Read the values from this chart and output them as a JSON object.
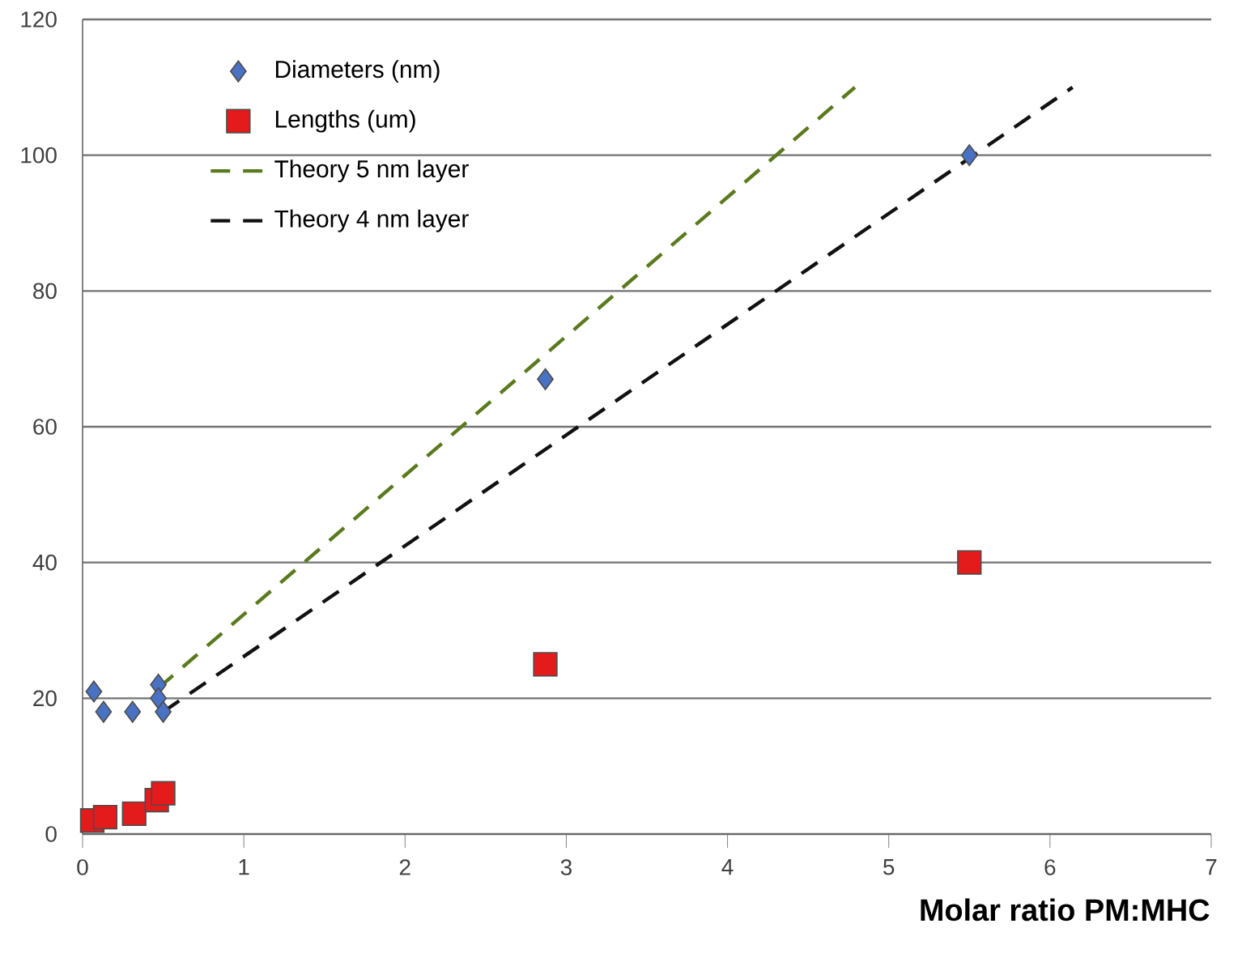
{
  "chart_data": {
    "type": "scatter",
    "xlabel": "Molar ratio PM:MHC",
    "xlim": [
      0,
      7
    ],
    "ylim": [
      0,
      120
    ],
    "xticks": [
      0,
      1,
      2,
      3,
      4,
      5,
      6,
      7
    ],
    "yticks": [
      0,
      20,
      40,
      60,
      80,
      100,
      120
    ],
    "grid": "y",
    "legend": "top left",
    "series": [
      {
        "name": "Diameters (nm)",
        "marker": "diamond",
        "color": "#4a72c4",
        "x": [
          0.07,
          0.13,
          0.31,
          0.47,
          0.47,
          0.5,
          2.87,
          5.5
        ],
        "values": [
          21,
          18,
          18,
          22,
          20,
          18,
          67,
          100
        ]
      },
      {
        "name": "Lengths (um)",
        "marker": "square",
        "color": "#e31b1b",
        "x": [
          0.06,
          0.14,
          0.32,
          0.46,
          0.5,
          2.87,
          5.5
        ],
        "values": [
          2,
          2.5,
          3,
          5,
          6,
          25,
          40
        ]
      },
      {
        "name": "Theory 5 nm layer",
        "type": "line",
        "line_style": "dashed",
        "marker": "none",
        "color": "#5a7a1e",
        "x": [
          0.47,
          4.79
        ],
        "values": [
          21.5,
          110
        ]
      },
      {
        "name": "Theory 4 nm layer",
        "type": "line",
        "line_style": "dashed",
        "marker": "none",
        "color": "#111111",
        "x": [
          0.5,
          6.14
        ],
        "values": [
          18,
          110
        ]
      }
    ]
  }
}
